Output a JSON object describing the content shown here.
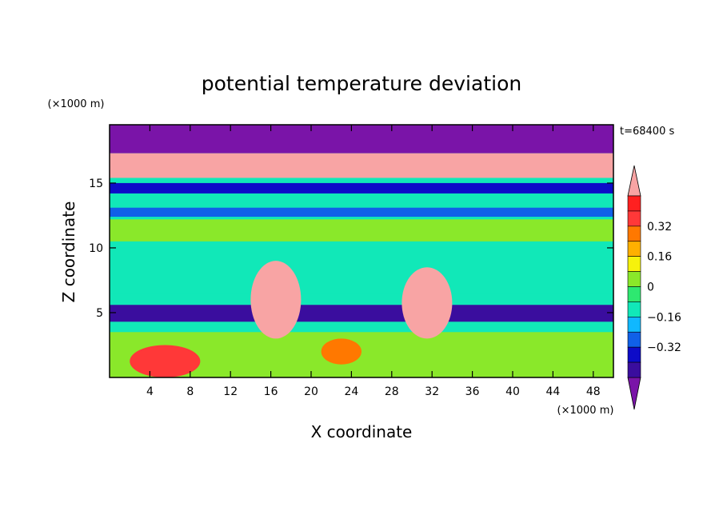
{
  "chart_data": {
    "type": "heatmap",
    "title": "potential temperature deviation",
    "xlabel": "X coordinate",
    "ylabel": "Z coordinate",
    "x_unit": "(×1000 m)",
    "y_unit": "(×1000 m)",
    "time_label": "t=68400 s",
    "xlim": [
      0,
      50
    ],
    "ylim": [
      0,
      19.5
    ],
    "x_ticks": [
      4,
      8,
      12,
      16,
      20,
      24,
      28,
      32,
      36,
      40,
      44,
      48
    ],
    "y_ticks": [
      5,
      10,
      15
    ],
    "colorbar": {
      "levels": [
        -0.48,
        -0.4,
        -0.32,
        -0.24,
        -0.16,
        -0.08,
        0,
        0.08,
        0.16,
        0.24,
        0.32,
        0.4,
        0.48
      ],
      "tick_labels": [
        "0.32",
        "0.16",
        "0",
        "−0.16",
        "−0.32"
      ],
      "tick_values": [
        0.32,
        0.16,
        0,
        -0.16,
        -0.32
      ],
      "colors": [
        "#7a14a8",
        "#3a0d9e",
        "#0d0bc8",
        "#1060e8",
        "#10b8ff",
        "#11e8b8",
        "#2ee870",
        "#8ae82a",
        "#f6f20c",
        "#ffb000",
        "#ff7800",
        "#ff3838",
        "#ff2020",
        "#f8a4a4"
      ]
    },
    "features": [
      {
        "kind": "band",
        "x": [
          0,
          50
        ],
        "y": [
          17.3,
          19.5
        ],
        "value": -0.5
      },
      {
        "kind": "band",
        "x": [
          0,
          50
        ],
        "y": [
          15.4,
          17.3
        ],
        "value": 0.5
      },
      {
        "kind": "band",
        "x": [
          0,
          50
        ],
        "y": [
          14.2,
          15.0
        ],
        "value": -0.35
      },
      {
        "kind": "band",
        "x": [
          0,
          50
        ],
        "y": [
          12.4,
          13.1
        ],
        "value": -0.3
      },
      {
        "kind": "band",
        "x": [
          0,
          50
        ],
        "y": [
          10.5,
          12.2
        ],
        "value": 0.02
      },
      {
        "kind": "band",
        "x": [
          0,
          50
        ],
        "y": [
          6.5,
          10.0
        ],
        "value": -0.1
      },
      {
        "kind": "band",
        "x": [
          0,
          50
        ],
        "y": [
          4.3,
          5.6
        ],
        "value": -0.45
      },
      {
        "kind": "band",
        "x": [
          0,
          50
        ],
        "y": [
          0,
          3.5
        ],
        "value": 0.05
      },
      {
        "kind": "blob",
        "x": [
          14,
          19
        ],
        "y": [
          3,
          9
        ],
        "value": 0.5
      },
      {
        "kind": "blob",
        "x": [
          29,
          34
        ],
        "y": [
          3,
          8.5
        ],
        "value": 0.5
      },
      {
        "kind": "blob",
        "x": [
          2,
          9
        ],
        "y": [
          0,
          2.5
        ],
        "value": 0.35
      },
      {
        "kind": "blob",
        "x": [
          21,
          25
        ],
        "y": [
          1,
          3
        ],
        "value": 0.3
      }
    ]
  }
}
